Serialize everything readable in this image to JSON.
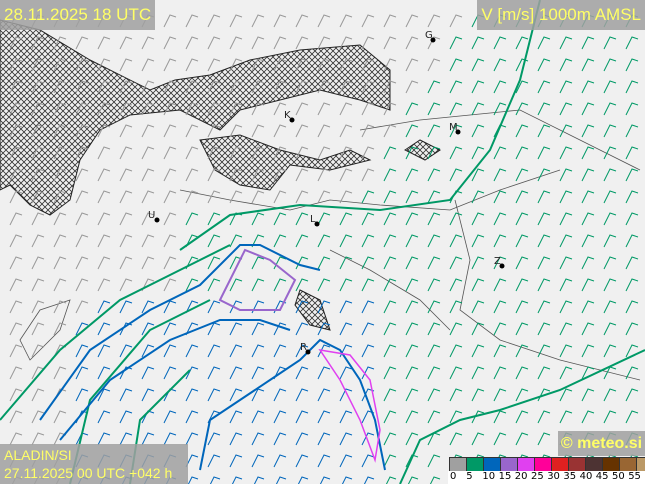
{
  "header": {
    "valid_time": "28.11.2025 18 UTC",
    "parameter": "V [m/s] 1000m AMSL"
  },
  "footer": {
    "model": "ALADIN/SI",
    "run": "27.11.2025 00 UTC +042 h",
    "copyright": "© meteo.si"
  },
  "legend": {
    "unit": "m/s",
    "ticks": [
      "0",
      "5",
      "10",
      "15",
      "20",
      "25",
      "30",
      "35",
      "40",
      "45",
      "50",
      "55"
    ],
    "colors": [
      "#a0a0a0",
      "#009966",
      "#0066bb",
      "#9966cc",
      "#e040f0",
      "#ff0099",
      "#e02020",
      "#993333",
      "#4d3333",
      "#663300",
      "#996633",
      "#bb9966"
    ]
  },
  "cities": [
    "G",
    "K",
    "M",
    "U",
    "L",
    "Z",
    "R"
  ],
  "colors": {
    "terrain_hatch": "#000000",
    "contour_5": "#009966",
    "contour_10": "#0066bb",
    "contour_15": "#9966cc"
  }
}
